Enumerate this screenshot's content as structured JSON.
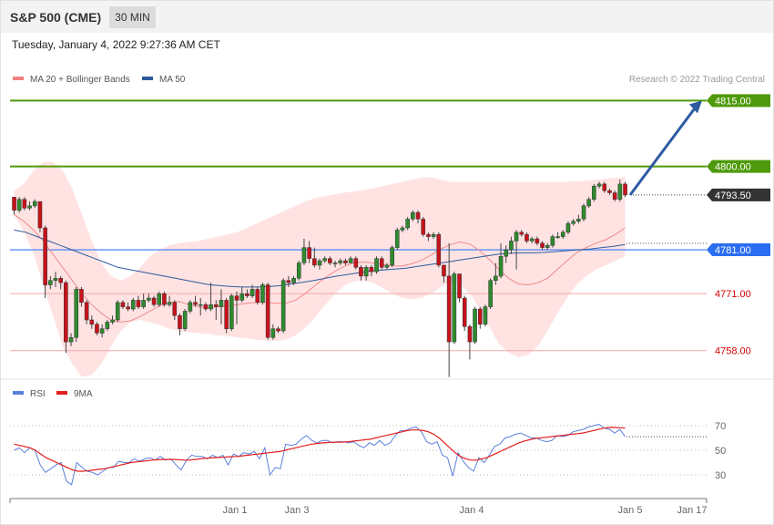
{
  "header": {
    "instrument": "S&P 500 (CME)",
    "timeframe": "30 MIN"
  },
  "timestamp": "Tuesday, January 4, 2022 9:27:36 AM CET",
  "legend": {
    "ma20": {
      "label": "MA 20 + Bollinger Bands",
      "color": "#f08080"
    },
    "ma50": {
      "label": "MA 50",
      "color": "#2d5a9e"
    },
    "rsi": {
      "label": "RSI",
      "color": "#5b7fdc"
    },
    "rsi_ma": {
      "label": "9MA",
      "color": "#e41e1e"
    }
  },
  "copyright": "Research © 2022 Trading Central",
  "colors": {
    "up": "#2e8b2e",
    "down": "#c8121b",
    "band": "#ffdede",
    "target": "#4f9a0c",
    "pivot": "#2a6df0",
    "support": "#e58080",
    "last": "#333333",
    "arrow": "#2d5aa0"
  },
  "chart_data": [
    {
      "type": "candlestick",
      "title": "S&P 500 (CME) 30 MIN",
      "ylim": [
        4751.5,
        4818
      ],
      "x_tick_labels": [
        "Jan 1",
        "Jan 3",
        "Jan 4",
        "Jan 5",
        "Jan 17"
      ],
      "levels": [
        {
          "value": 4815.0,
          "label": "4815.00",
          "kind": "target"
        },
        {
          "value": 4800.0,
          "label": "4800.00",
          "kind": "target"
        },
        {
          "value": 4793.5,
          "label": "4793.50",
          "kind": "last"
        },
        {
          "value": 4781.0,
          "label": "4781.00",
          "kind": "pivot"
        },
        {
          "value": 4771.0,
          "label": "4771.00",
          "kind": "support"
        },
        {
          "value": 4758.0,
          "label": "4758.00",
          "kind": "support"
        }
      ],
      "projection": {
        "from": 4793.5,
        "to": 4815.0
      },
      "candles": [
        [
          4793.0,
          4790.0,
          4793.0,
          4789.0
        ],
        [
          4790.0,
          4792.5,
          4793.0,
          4789.5
        ],
        [
          4792.5,
          4790.5,
          4793.0,
          4790.0
        ],
        [
          4790.5,
          4791.0,
          4792.0,
          4790.0
        ],
        [
          4791.0,
          4792.0,
          4792.5,
          4790.5
        ],
        [
          4792.0,
          4786.0,
          4792.0,
          4785.0
        ],
        [
          4786.0,
          4773.0,
          4786.5,
          4770.0
        ],
        [
          4773.0,
          4774.0,
          4775.0,
          4772.0
        ],
        [
          4774.0,
          4774.5,
          4776.0,
          4772.5
        ],
        [
          4774.5,
          4773.5,
          4775.0,
          4772.0
        ],
        [
          4773.5,
          4760.0,
          4774.0,
          4757.5
        ],
        [
          4760.0,
          4761.0,
          4762.0,
          4759.0
        ],
        [
          4761.0,
          4772.0,
          4772.5,
          4760.0
        ],
        [
          4772.0,
          4769.0,
          4772.5,
          4768.0
        ],
        [
          4769.0,
          4765.0,
          4769.5,
          4764.0
        ],
        [
          4765.0,
          4764.0,
          4766.0,
          4763.0
        ],
        [
          4764.0,
          4762.0,
          4764.5,
          4761.5
        ],
        [
          4762.0,
          4763.0,
          4764.0,
          4761.0
        ],
        [
          4763.0,
          4764.5,
          4765.0,
          4762.5
        ],
        [
          4764.5,
          4765.0,
          4766.0,
          4764.0
        ],
        [
          4765.0,
          4769.0,
          4769.5,
          4764.5
        ],
        [
          4769.0,
          4768.0,
          4769.5,
          4767.5
        ],
        [
          4768.0,
          4767.5,
          4769.0,
          4767.0
        ],
        [
          4767.5,
          4769.5,
          4770.0,
          4767.0
        ],
        [
          4769.5,
          4768.0,
          4770.5,
          4767.5
        ],
        [
          4768.0,
          4769.5,
          4771.0,
          4767.5
        ],
        [
          4769.5,
          4770.0,
          4771.0,
          4769.0
        ],
        [
          4770.0,
          4768.5,
          4770.5,
          4768.0
        ],
        [
          4768.5,
          4771.0,
          4771.5,
          4768.0
        ],
        [
          4771.0,
          4768.5,
          4771.5,
          4768.0
        ],
        [
          4768.5,
          4769.0,
          4770.5,
          4768.0
        ],
        [
          4769.0,
          4766.0,
          4769.5,
          4765.0
        ],
        [
          4766.0,
          4763.0,
          4766.5,
          4761.5
        ],
        [
          4763.0,
          4767.0,
          4767.5,
          4762.5
        ],
        [
          4767.0,
          4769.0,
          4769.5,
          4766.5
        ],
        [
          4769.0,
          4768.5,
          4770.5,
          4768.0
        ],
        [
          4768.5,
          4768.5,
          4770.0,
          4766.0
        ],
        [
          4768.5,
          4767.5,
          4769.0,
          4767.0
        ],
        [
          4767.5,
          4768.5,
          4773.5,
          4767.0
        ],
        [
          4768.5,
          4768.0,
          4769.5,
          4765.0
        ],
        [
          4768.0,
          4769.5,
          4772.0,
          4764.0
        ],
        [
          4769.5,
          4763.0,
          4770.0,
          4762.0
        ],
        [
          4763.0,
          4770.5,
          4771.0,
          4762.5
        ],
        [
          4770.5,
          4769.5,
          4771.5,
          4764.0
        ],
        [
          4769.5,
          4771.0,
          4772.5,
          4769.0
        ],
        [
          4771.0,
          4770.5,
          4772.0,
          4770.0
        ],
        [
          4770.5,
          4772.0,
          4773.0,
          4770.0
        ],
        [
          4772.0,
          4769.0,
          4772.5,
          4768.5
        ],
        [
          4769.0,
          4773.0,
          4773.5,
          4768.5
        ],
        [
          4773.0,
          4761.0,
          4773.5,
          4760.5
        ],
        [
          4761.0,
          4763.0,
          4764.0,
          4760.5
        ],
        [
          4763.0,
          4762.5,
          4763.5,
          4762.0
        ],
        [
          4762.5,
          4774.0,
          4774.5,
          4762.0
        ],
        [
          4774.0,
          4773.5,
          4775.0,
          4772.5
        ],
        [
          4773.5,
          4774.5,
          4775.0,
          4773.0
        ],
        [
          4774.5,
          4778.0,
          4778.5,
          4774.0
        ],
        [
          4778.0,
          4781.5,
          4783.5,
          4777.5
        ],
        [
          4781.5,
          4779.0,
          4783.0,
          4778.0
        ],
        [
          4779.0,
          4777.5,
          4781.5,
          4777.0
        ],
        [
          4777.5,
          4778.5,
          4779.0,
          4776.5
        ],
        [
          4778.5,
          4779.0,
          4779.5,
          4778.0
        ],
        [
          4779.0,
          4778.0,
          4779.5,
          4777.5
        ],
        [
          4778.0,
          4778.0,
          4778.5,
          4777.0
        ],
        [
          4778.0,
          4778.5,
          4779.0,
          4777.5
        ],
        [
          4778.5,
          4778.0,
          4779.0,
          4777.5
        ],
        [
          4778.0,
          4779.0,
          4779.5,
          4778.0
        ],
        [
          4779.0,
          4777.0,
          4779.5,
          4776.5
        ],
        [
          4777.0,
          4775.0,
          4777.5,
          4774.0
        ],
        [
          4775.0,
          4777.0,
          4777.5,
          4774.0
        ],
        [
          4777.0,
          4776.0,
          4777.5,
          4775.0
        ],
        [
          4776.0,
          4779.0,
          4779.5,
          4775.5
        ],
        [
          4779.0,
          4777.0,
          4779.5,
          4776.5
        ],
        [
          4777.0,
          4777.5,
          4778.0,
          4776.5
        ],
        [
          4777.5,
          4781.5,
          4782.0,
          4777.0
        ],
        [
          4781.5,
          4785.5,
          4786.0,
          4781.0
        ],
        [
          4785.5,
          4786.0,
          4786.5,
          4785.0
        ],
        [
          4786.0,
          4788.0,
          4788.5,
          4785.5
        ],
        [
          4788.0,
          4789.5,
          4790.0,
          4787.5
        ],
        [
          4789.5,
          4788.0,
          4790.0,
          4787.0
        ],
        [
          4788.0,
          4784.5,
          4788.5,
          4784.0
        ],
        [
          4784.5,
          4784.0,
          4785.0,
          4783.0
        ],
        [
          4784.0,
          4784.5,
          4785.0,
          4783.5
        ],
        [
          4784.5,
          4777.5,
          4785.0,
          4777.0
        ],
        [
          4777.5,
          4775.0,
          4777.5,
          4773.5
        ],
        [
          4775.0,
          4760.0,
          4782.5,
          4752.0
        ],
        [
          4760.0,
          4775.5,
          4776.0,
          4759.5
        ],
        [
          4775.5,
          4770.0,
          4775.5,
          4769.0
        ],
        [
          4770.0,
          4763.5,
          4770.5,
          4762.5
        ],
        [
          4763.5,
          4760.0,
          4764.0,
          4756.0
        ],
        [
          4760.0,
          4767.5,
          4768.0,
          4759.5
        ],
        [
          4767.5,
          4764.0,
          4768.0,
          4763.0
        ],
        [
          4764.0,
          4768.0,
          4768.5,
          4763.5
        ],
        [
          4768.0,
          4774.0,
          4774.5,
          4767.5
        ],
        [
          4774.0,
          4775.0,
          4778.0,
          4773.0
        ],
        [
          4775.0,
          4779.5,
          4782.5,
          4774.5
        ],
        [
          4779.5,
          4781.0,
          4782.0,
          4778.0
        ],
        [
          4781.0,
          4783.0,
          4784.0,
          4780.0
        ],
        [
          4783.0,
          4785.0,
          4785.5,
          4776.5
        ],
        [
          4785.0,
          4784.5,
          4785.5,
          4784.0
        ],
        [
          4784.5,
          4783.0,
          4785.0,
          4782.5
        ],
        [
          4783.0,
          4783.5,
          4784.0,
          4782.5
        ],
        [
          4783.5,
          4782.5,
          4784.0,
          4782.0
        ],
        [
          4782.5,
          4781.5,
          4783.0,
          4781.0
        ],
        [
          4781.5,
          4782.0,
          4782.5,
          4781.0
        ],
        [
          4782.0,
          4784.0,
          4784.5,
          4781.5
        ],
        [
          4784.0,
          4784.0,
          4785.0,
          4783.5
        ],
        [
          4784.0,
          4785.0,
          4785.5,
          4783.5
        ],
        [
          4785.0,
          4787.0,
          4787.5,
          4784.5
        ],
        [
          4787.0,
          4787.5,
          4788.0,
          4786.5
        ],
        [
          4787.5,
          4788.0,
          4789.0,
          4787.0
        ],
        [
          4788.0,
          4791.0,
          4791.5,
          4787.5
        ],
        [
          4791.0,
          4792.5,
          4793.0,
          4790.5
        ],
        [
          4792.5,
          4795.5,
          4796.0,
          4792.0
        ],
        [
          4795.5,
          4796.0,
          4796.5,
          4795.0
        ],
        [
          4796.0,
          4794.5,
          4796.5,
          4794.0
        ],
        [
          4794.5,
          4794.0,
          4795.0,
          4793.5
        ],
        [
          4794.0,
          4792.5,
          4794.5,
          4792.0
        ],
        [
          4792.5,
          4796.0,
          4797.0,
          4792.0
        ],
        [
          4796.0,
          4793.5,
          4796.5,
          4793.0
        ]
      ],
      "ma20": [
        4789,
        4787.5,
        4785.5,
        4783,
        4780,
        4777,
        4774,
        4771,
        4768.5,
        4766.5,
        4765,
        4764.5,
        4764.8,
        4765.8,
        4767,
        4768.2,
        4769,
        4769.2,
        4768.5,
        4768,
        4767.8,
        4768,
        4768.2,
        4768.5,
        4768.8,
        4769,
        4769,
        4768.8,
        4768.8,
        4769.5,
        4771,
        4772.8,
        4774.5,
        4776,
        4777.2,
        4778,
        4778.2,
        4778,
        4777.6,
        4777.3,
        4777.3,
        4777.8,
        4778.6,
        4779.8,
        4781.2,
        4782.2,
        4782.8,
        4782.3,
        4780.8,
        4778.8,
        4776.5,
        4774.5,
        4773.2,
        4773,
        4773.5,
        4774.5,
        4776.5,
        4778.5,
        4780.3,
        4781.5,
        4782.5,
        4783.3,
        4784.5,
        4786
      ],
      "ma50": [
        4785.5,
        4785,
        4784,
        4783,
        4782,
        4781,
        4780,
        4779,
        4778,
        4777,
        4776.5,
        4776,
        4775.5,
        4775,
        4774.5,
        4774,
        4773.5,
        4773,
        4772.8,
        4772.6,
        4772.5,
        4772.5,
        4772.6,
        4772.8,
        4773.2,
        4773.6,
        4774,
        4774.5,
        4775,
        4775.4,
        4775.8,
        4776.2,
        4776.4,
        4776.6,
        4776.8,
        4777.2,
        4777.6,
        4778,
        4778.4,
        4778.8,
        4779.2,
        4779.6,
        4780,
        4780.2,
        4780.3,
        4780.3,
        4780.4,
        4780.6,
        4780.8,
        4781,
        4781.2,
        4781.5,
        4781.8,
        4782.2
      ],
      "bb_upper": [
        4794.5,
        4796,
        4799,
        4801,
        4801,
        4799,
        4795,
        4789,
        4783,
        4778,
        4775,
        4774,
        4775,
        4777,
        4779.5,
        4781,
        4782,
        4782.5,
        4782.8,
        4783,
        4783.5,
        4784,
        4784.5,
        4785,
        4786,
        4787,
        4788,
        4789,
        4790,
        4791,
        4792,
        4792.8,
        4793.2,
        4793.6,
        4794,
        4794.3,
        4794.6,
        4795,
        4795.5,
        4796,
        4796.5,
        4797,
        4797.5,
        4797.5,
        4797,
        4796.5,
        4796.5,
        4796.5,
        4796.5,
        4796.5,
        4796.5,
        4796.5,
        4796.5,
        4796.5,
        4796.5,
        4796.5,
        4796.5,
        4796.5,
        4796.6,
        4796.8,
        4797,
        4797.2,
        4797.4,
        4797.5
      ],
      "bb_lower": [
        4789,
        4785,
        4780,
        4773,
        4766,
        4759,
        4755,
        4752,
        4752.5,
        4755,
        4759,
        4762.5,
        4764.5,
        4765,
        4764.5,
        4763.8,
        4763,
        4762.5,
        4762.2,
        4762,
        4761.8,
        4761.5,
        4761.3,
        4761,
        4760.8,
        4760.5,
        4760.3,
        4760.2,
        4760.5,
        4761.5,
        4763.2,
        4765.5,
        4768.2,
        4770.8,
        4772.8,
        4773.8,
        4774,
        4773.5,
        4772.3,
        4771,
        4770,
        4769.7,
        4770,
        4771,
        4772.5,
        4773.5,
        4773,
        4771,
        4767.5,
        4763.5,
        4759.5,
        4757.5,
        4756.5,
        4757,
        4759,
        4762.5,
        4766.5,
        4770,
        4773,
        4775,
        4776.5,
        4777.5,
        4778.5,
        4779.5
      ],
      "price_overlay_x_range": [
        0,
        115
      ]
    },
    {
      "type": "line",
      "title": "RSI",
      "ylim": [
        10,
        90
      ],
      "y_tick_labels": [
        "70",
        "50",
        "30"
      ],
      "rsi": [
        50,
        52,
        48,
        52,
        50,
        38,
        32,
        35,
        38,
        40,
        25,
        22,
        40,
        36,
        33,
        32,
        30,
        33,
        36,
        36,
        41,
        40,
        40,
        43,
        41,
        43,
        44,
        42,
        45,
        42,
        43,
        38,
        34,
        42,
        46,
        45,
        45,
        43,
        46,
        44,
        46,
        38,
        47,
        45,
        48,
        47,
        49,
        43,
        52,
        30,
        36,
        35,
        55,
        54,
        55,
        59,
        62,
        58,
        56,
        58,
        58,
        56,
        57,
        57,
        56,
        57,
        54,
        52,
        56,
        54,
        58,
        54,
        56,
        62,
        66,
        66,
        68,
        69,
        65,
        57,
        55,
        57,
        46,
        44,
        29,
        48,
        41,
        36,
        33,
        44,
        40,
        46,
        53,
        55,
        60,
        61,
        63,
        64,
        62,
        60,
        60,
        58,
        57,
        58,
        62,
        61,
        62,
        65,
        66,
        67,
        69,
        70,
        71,
        68,
        67,
        64,
        67,
        61
      ],
      "rsi_ma9": [
        55,
        54,
        53,
        52,
        50,
        47,
        44,
        42,
        40,
        38,
        36,
        34,
        33,
        33,
        33.5,
        34,
        34.5,
        35,
        36,
        37,
        38,
        39,
        40,
        40.5,
        41,
        41.5,
        42,
        42.3,
        42.5,
        42.5,
        42.5,
        42.3,
        42,
        42,
        42.5,
        43,
        43.5,
        43.8,
        44,
        44.2,
        44.5,
        44.8,
        45,
        45.5,
        46,
        46.5,
        47,
        47.5,
        48,
        48.5,
        49,
        50,
        51,
        52,
        53,
        54,
        55,
        55.5,
        56,
        56.3,
        56.5,
        56.6,
        56.7,
        57,
        57.5,
        58,
        58.5,
        59,
        60,
        61,
        62,
        63,
        64,
        65,
        66,
        66.5,
        66.5,
        66,
        65,
        63,
        60,
        56,
        52,
        48,
        45,
        43,
        42,
        42,
        43,
        44,
        46,
        48,
        50,
        52,
        54,
        56,
        57.5,
        58.5,
        59.5,
        60,
        60.5,
        61,
        61.5,
        62,
        62.5,
        63,
        63.5,
        64,
        65,
        66,
        67,
        68,
        68.5,
        68.5,
        68.3,
        68
      ],
      "x_range": [
        0,
        115
      ]
    }
  ]
}
